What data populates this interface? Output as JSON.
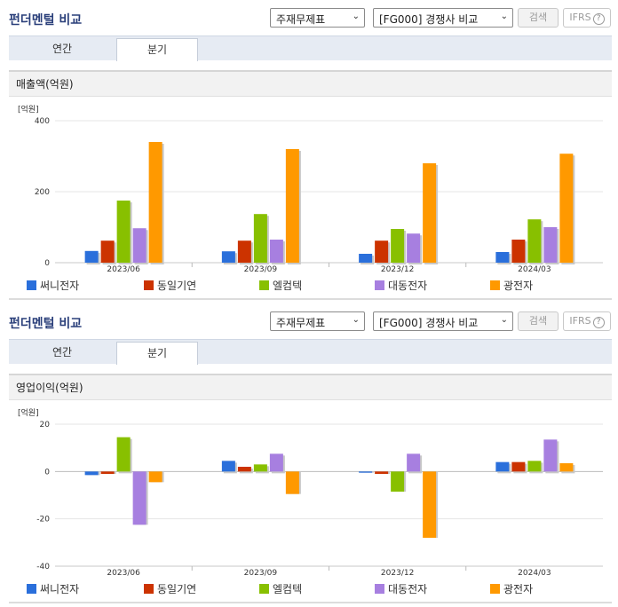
{
  "colors": {
    "series": [
      "#2a6fdb",
      "#cc3300",
      "#88c000",
      "#a77fe0",
      "#ff9900"
    ],
    "bar_shadow": "#c8c8c8"
  },
  "panels": [
    {
      "title": "펀더멘털 비교",
      "select_statement": "주재무제표",
      "select_compare": "[FG000] 경쟁사 비교",
      "search_label": "검색",
      "ifrs_label": "IFRS",
      "help_icon": "?",
      "tabs": [
        "연간",
        "분기"
      ],
      "active_tab": 1,
      "section_title": "매출액(억원)"
    },
    {
      "title": "펀더멘털 비교",
      "select_statement": "주재무제표",
      "select_compare": "[FG000] 경쟁사 비교",
      "search_label": "검색",
      "ifrs_label": "IFRS",
      "help_icon": "?",
      "tabs": [
        "연간",
        "분기"
      ],
      "active_tab": 1,
      "section_title": "영업이익(억원)"
    }
  ],
  "chart_data": [
    {
      "type": "bar",
      "unit_label": "[억원]",
      "categories": [
        "2023/06",
        "2023/09",
        "2023/12",
        "2024/03"
      ],
      "ylim": [
        0,
        400
      ],
      "yticks": [
        0,
        200,
        400
      ],
      "series": [
        {
          "name": "써니전자",
          "values": [
            33,
            32,
            25,
            30
          ]
        },
        {
          "name": "동일기연",
          "values": [
            62,
            62,
            62,
            65
          ]
        },
        {
          "name": "엘컴텍",
          "values": [
            175,
            137,
            95,
            122
          ]
        },
        {
          "name": "대동전자",
          "values": [
            97,
            65,
            82,
            100
          ]
        },
        {
          "name": "광전자",
          "values": [
            340,
            320,
            280,
            307
          ]
        }
      ]
    },
    {
      "type": "bar",
      "unit_label": "[억원]",
      "categories": [
        "2023/06",
        "2023/09",
        "2023/12",
        "2024/03"
      ],
      "ylim": [
        -40,
        20
      ],
      "yticks": [
        -40,
        -20,
        0,
        20
      ],
      "series": [
        {
          "name": "써니전자",
          "values": [
            -1.5,
            4.5,
            -0.5,
            4
          ]
        },
        {
          "name": "동일기연",
          "values": [
            -1,
            2,
            -1,
            4
          ]
        },
        {
          "name": "엘컴텍",
          "values": [
            14.5,
            3,
            -8.5,
            4.5
          ]
        },
        {
          "name": "대동전자",
          "values": [
            -22.5,
            7.5,
            7.5,
            13.5
          ]
        },
        {
          "name": "광전자",
          "values": [
            -4.5,
            -9.5,
            -28,
            3.5
          ]
        }
      ]
    }
  ]
}
